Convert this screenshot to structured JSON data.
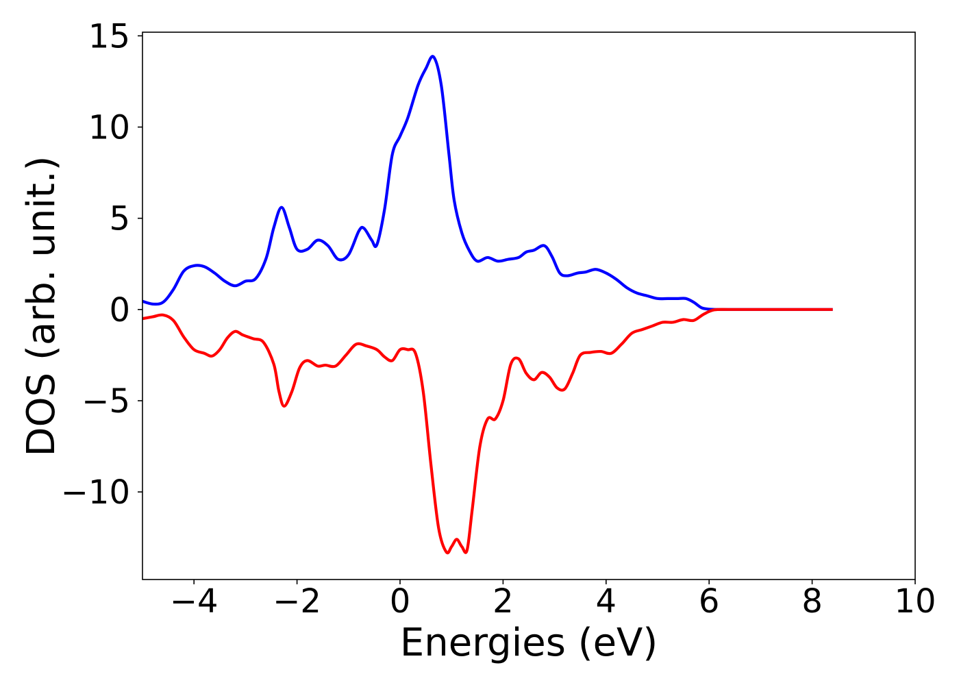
{
  "chart_data": {
    "type": "line",
    "title": "",
    "xlabel": "Energies (eV)",
    "ylabel": "DOS (arb. unit.)",
    "xlim": [
      -5,
      10
    ],
    "ylim": [
      -14.8,
      15.2
    ],
    "xticks": [
      -4,
      -2,
      0,
      2,
      4,
      6,
      8,
      10
    ],
    "yticks": [
      -10,
      -5,
      0,
      5,
      10,
      15
    ],
    "grid": false,
    "legend": false,
    "series": [
      {
        "color": "#0000ff",
        "points": [
          [
            -5.0,
            0.45
          ],
          [
            -4.8,
            0.3
          ],
          [
            -4.6,
            0.4
          ],
          [
            -4.4,
            1.1
          ],
          [
            -4.2,
            2.1
          ],
          [
            -4.0,
            2.4
          ],
          [
            -3.8,
            2.35
          ],
          [
            -3.6,
            2.0
          ],
          [
            -3.4,
            1.55
          ],
          [
            -3.2,
            1.3
          ],
          [
            -3.0,
            1.55
          ],
          [
            -2.8,
            1.7
          ],
          [
            -2.6,
            2.8
          ],
          [
            -2.45,
            4.5
          ],
          [
            -2.3,
            5.6
          ],
          [
            -2.15,
            4.5
          ],
          [
            -2.0,
            3.3
          ],
          [
            -1.8,
            3.3
          ],
          [
            -1.6,
            3.8
          ],
          [
            -1.4,
            3.5
          ],
          [
            -1.2,
            2.75
          ],
          [
            -1.0,
            3.0
          ],
          [
            -0.8,
            4.3
          ],
          [
            -0.7,
            4.45
          ],
          [
            -0.55,
            3.8
          ],
          [
            -0.45,
            3.55
          ],
          [
            -0.3,
            5.5
          ],
          [
            -0.15,
            8.5
          ],
          [
            0.0,
            9.5
          ],
          [
            0.15,
            10.5
          ],
          [
            0.35,
            12.3
          ],
          [
            0.5,
            13.2
          ],
          [
            0.65,
            13.85
          ],
          [
            0.8,
            12.3
          ],
          [
            0.95,
            8.5
          ],
          [
            1.05,
            6.0
          ],
          [
            1.2,
            4.2
          ],
          [
            1.35,
            3.2
          ],
          [
            1.5,
            2.65
          ],
          [
            1.7,
            2.85
          ],
          [
            1.9,
            2.65
          ],
          [
            2.1,
            2.75
          ],
          [
            2.3,
            2.85
          ],
          [
            2.45,
            3.15
          ],
          [
            2.6,
            3.25
          ],
          [
            2.8,
            3.5
          ],
          [
            2.95,
            2.9
          ],
          [
            3.1,
            2.0
          ],
          [
            3.25,
            1.85
          ],
          [
            3.45,
            2.0
          ],
          [
            3.6,
            2.05
          ],
          [
            3.8,
            2.2
          ],
          [
            4.0,
            2.0
          ],
          [
            4.2,
            1.65
          ],
          [
            4.4,
            1.2
          ],
          [
            4.6,
            0.9
          ],
          [
            4.8,
            0.75
          ],
          [
            5.0,
            0.6
          ],
          [
            5.2,
            0.6
          ],
          [
            5.4,
            0.6
          ],
          [
            5.55,
            0.6
          ],
          [
            5.7,
            0.4
          ],
          [
            5.85,
            0.1
          ],
          [
            6.0,
            0.02
          ],
          [
            6.3,
            0.0
          ],
          [
            7.0,
            0.0
          ],
          [
            8.0,
            0.0
          ],
          [
            8.4,
            0.0
          ]
        ]
      },
      {
        "color": "#ff0000",
        "points": [
          [
            -5.0,
            -0.5
          ],
          [
            -4.8,
            -0.4
          ],
          [
            -4.6,
            -0.3
          ],
          [
            -4.4,
            -0.6
          ],
          [
            -4.2,
            -1.5
          ],
          [
            -4.0,
            -2.2
          ],
          [
            -3.8,
            -2.4
          ],
          [
            -3.65,
            -2.55
          ],
          [
            -3.5,
            -2.2
          ],
          [
            -3.35,
            -1.55
          ],
          [
            -3.2,
            -1.2
          ],
          [
            -3.05,
            -1.4
          ],
          [
            -2.85,
            -1.6
          ],
          [
            -2.65,
            -1.8
          ],
          [
            -2.45,
            -3.0
          ],
          [
            -2.35,
            -4.5
          ],
          [
            -2.25,
            -5.3
          ],
          [
            -2.1,
            -4.5
          ],
          [
            -1.95,
            -3.2
          ],
          [
            -1.8,
            -2.8
          ],
          [
            -1.6,
            -3.1
          ],
          [
            -1.45,
            -3.05
          ],
          [
            -1.25,
            -3.1
          ],
          [
            -1.05,
            -2.5
          ],
          [
            -0.85,
            -1.9
          ],
          [
            -0.65,
            -2.0
          ],
          [
            -0.45,
            -2.2
          ],
          [
            -0.3,
            -2.6
          ],
          [
            -0.15,
            -2.8
          ],
          [
            0.0,
            -2.2
          ],
          [
            0.15,
            -2.2
          ],
          [
            0.3,
            -2.4
          ],
          [
            0.45,
            -4.5
          ],
          [
            0.6,
            -8.5
          ],
          [
            0.75,
            -12.0
          ],
          [
            0.9,
            -13.3
          ],
          [
            1.0,
            -13.0
          ],
          [
            1.1,
            -12.6
          ],
          [
            1.2,
            -13.0
          ],
          [
            1.3,
            -13.2
          ],
          [
            1.4,
            -11.0
          ],
          [
            1.55,
            -7.5
          ],
          [
            1.7,
            -6.0
          ],
          [
            1.85,
            -6.0
          ],
          [
            2.0,
            -5.0
          ],
          [
            2.15,
            -3.0
          ],
          [
            2.3,
            -2.7
          ],
          [
            2.45,
            -3.5
          ],
          [
            2.6,
            -3.85
          ],
          [
            2.75,
            -3.45
          ],
          [
            2.9,
            -3.7
          ],
          [
            3.05,
            -4.3
          ],
          [
            3.2,
            -4.35
          ],
          [
            3.35,
            -3.5
          ],
          [
            3.5,
            -2.5
          ],
          [
            3.7,
            -2.35
          ],
          [
            3.9,
            -2.3
          ],
          [
            4.1,
            -2.4
          ],
          [
            4.3,
            -1.9
          ],
          [
            4.5,
            -1.3
          ],
          [
            4.7,
            -1.1
          ],
          [
            4.9,
            -0.9
          ],
          [
            5.1,
            -0.7
          ],
          [
            5.3,
            -0.7
          ],
          [
            5.5,
            -0.55
          ],
          [
            5.7,
            -0.6
          ],
          [
            5.9,
            -0.25
          ],
          [
            6.1,
            -0.02
          ],
          [
            6.4,
            0.0
          ],
          [
            7.0,
            0.0
          ],
          [
            8.0,
            0.0
          ],
          [
            8.4,
            0.0
          ]
        ]
      }
    ]
  }
}
